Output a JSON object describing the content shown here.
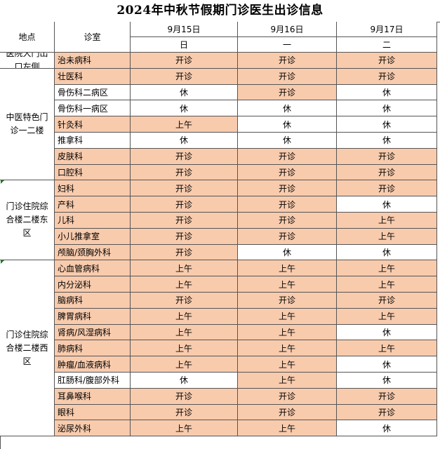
{
  "title": "2024年中秋节假期门诊医生出诊信息",
  "header": {
    "location": "地点",
    "department": "诊室",
    "dates": [
      "9月15日",
      "9月16日",
      "9月17日"
    ],
    "weekdays": [
      "日",
      "一",
      "二"
    ]
  },
  "groups": [
    {
      "location": "医院大门出口左侧",
      "rows": [
        {
          "dept": "治未病科",
          "status": [
            "开诊",
            "开诊",
            "开诊"
          ]
        }
      ]
    },
    {
      "location": "中医特色门诊一二楼",
      "rows": [
        {
          "dept": "壮医科",
          "status": [
            "开诊",
            "开诊",
            "开诊"
          ]
        },
        {
          "dept": "骨伤科二病区",
          "status": [
            "休",
            "开诊",
            "休"
          ]
        },
        {
          "dept": "骨伤科一病区",
          "status": [
            "休",
            "休",
            "休"
          ]
        },
        {
          "dept": "针灸科",
          "status": [
            "上午",
            "休",
            "休"
          ]
        },
        {
          "dept": "推拿科",
          "status": [
            "休",
            "休",
            "休"
          ]
        },
        {
          "dept": "皮肤科",
          "status": [
            "开诊",
            "开诊",
            "开诊"
          ]
        },
        {
          "dept": "口腔科",
          "status": [
            "开诊",
            "开诊",
            "开诊"
          ]
        }
      ]
    },
    {
      "location": "门诊住院综合楼二楼东区",
      "rows": [
        {
          "dept": "妇科",
          "status": [
            "开诊",
            "开诊",
            "开诊"
          ]
        },
        {
          "dept": "产科",
          "status": [
            "开诊",
            "开诊",
            "休"
          ]
        },
        {
          "dept": "儿科",
          "status": [
            "开诊",
            "开诊",
            "上午"
          ]
        },
        {
          "dept": "小儿推拿室",
          "status": [
            "开诊",
            "开诊",
            "上午"
          ]
        },
        {
          "dept": "颅脑/颈胸外科",
          "status": [
            "开诊",
            "休",
            "休"
          ]
        }
      ]
    },
    {
      "location": "门诊住院综合楼二楼西区",
      "rows": [
        {
          "dept": "心血管病科",
          "status": [
            "上午",
            "上午",
            "上午"
          ]
        },
        {
          "dept": "内分泌科",
          "status": [
            "上午",
            "上午",
            "上午"
          ]
        },
        {
          "dept": "脑病科",
          "status": [
            "开诊",
            "开诊",
            "开诊"
          ]
        },
        {
          "dept": "脾胃病科",
          "status": [
            "上午",
            "上午",
            "上午"
          ]
        },
        {
          "dept": "肾病/风湿病科",
          "status": [
            "上午",
            "上午",
            "休"
          ]
        },
        {
          "dept": "肺病科",
          "status": [
            "上午",
            "上午",
            "上午"
          ]
        },
        {
          "dept": "肿瘤/血液病科",
          "status": [
            "上午",
            "上午",
            "休"
          ]
        },
        {
          "dept": "肛肠科/腹部外科",
          "status": [
            "休",
            "上午",
            "休"
          ]
        },
        {
          "dept": "耳鼻喉科",
          "status": [
            "开诊",
            "开诊",
            "开诊"
          ]
        },
        {
          "dept": "眼科",
          "status": [
            "开诊",
            "开诊",
            "开诊"
          ]
        },
        {
          "dept": "泌尿外科",
          "status": [
            "上午",
            "上午",
            "休"
          ]
        }
      ]
    }
  ],
  "status_colors": {
    "开诊": "#f8cbad",
    "上午": "#f8cbad",
    "休": "#ffffff"
  }
}
